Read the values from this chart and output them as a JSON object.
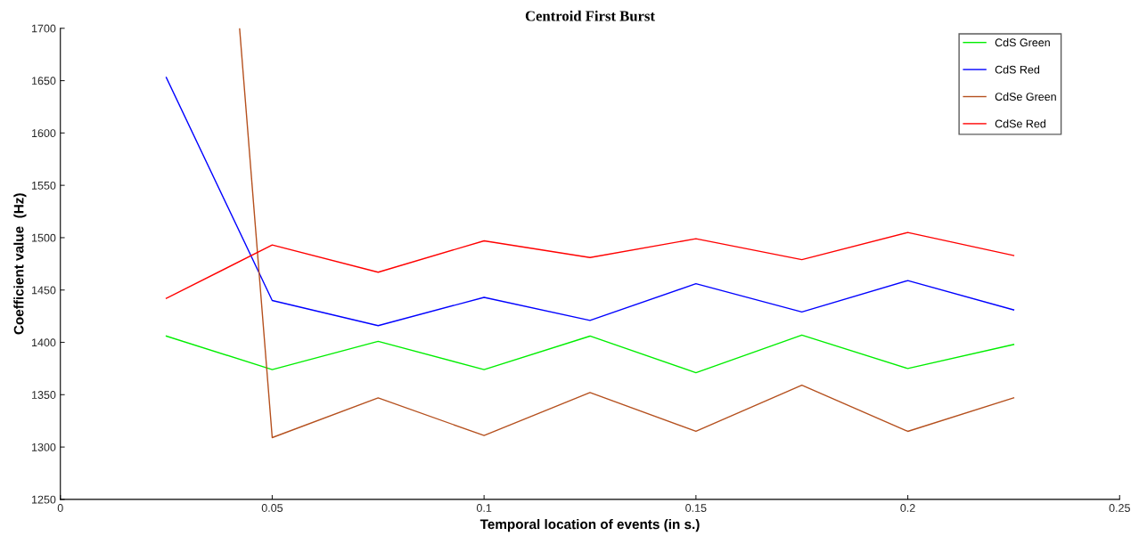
{
  "chart_data": {
    "type": "line",
    "title": "Centroid First Burst",
    "xlabel": "Temporal location of events (in s.)",
    "ylabel": "Coefficient value  (Hz)",
    "x": [
      0.025,
      0.05,
      0.075,
      0.1,
      0.125,
      0.15,
      0.175,
      0.2,
      0.225
    ],
    "series": [
      {
        "name": "CdS Green",
        "color": "#00ee00",
        "values": [
          1406,
          1374,
          1401,
          1374,
          1406,
          1371,
          1407,
          1375,
          1398
        ]
      },
      {
        "name": "CdS Red",
        "color": "#0000ff",
        "values": [
          1653,
          1440,
          1416,
          1443,
          1421,
          1456,
          1429,
          1459,
          1431
        ]
      },
      {
        "name": "CdSe Green",
        "color": "#b5501e",
        "x": [
          0.0423,
          0.05,
          0.075,
          0.1,
          0.125,
          0.15,
          0.175,
          0.2,
          0.225
        ],
        "values": [
          1700,
          1309,
          1347,
          1311,
          1352,
          1315,
          1359,
          1315,
          1347
        ]
      },
      {
        "name": "CdSe Red",
        "color": "#ff0000",
        "values": [
          1442,
          1493,
          1467,
          1497,
          1481,
          1499,
          1479,
          1505,
          1483
        ]
      }
    ],
    "xlim": [
      0,
      0.25
    ],
    "xticks": [
      0,
      0.05,
      0.1,
      0.15,
      0.2,
      0.25
    ],
    "ylim": [
      1250,
      1700
    ],
    "yticks": [
      1250,
      1300,
      1350,
      1400,
      1450,
      1500,
      1550,
      1600,
      1650,
      1700
    ],
    "grid": false,
    "legend": "top right"
  }
}
